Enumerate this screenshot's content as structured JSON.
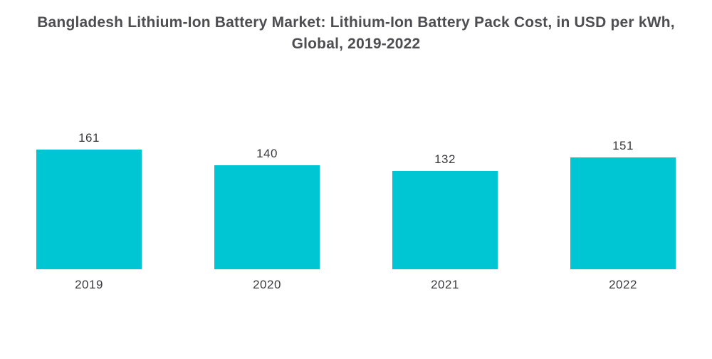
{
  "chart_data": {
    "type": "bar",
    "title": "Bangladesh Lithium-Ion Battery Market: Lithium-Ion Battery Pack Cost, in USD per kWh, Global, 2019-2022",
    "categories": [
      "2019",
      "2020",
      "2021",
      "2022"
    ],
    "values": [
      161,
      140,
      132,
      151
    ],
    "xlabel": "",
    "ylabel": "",
    "ylim": [
      0,
      257
    ],
    "grid": false,
    "legend": false,
    "bar_color": "#00c6d3",
    "value_label_color": "#3a3a3e",
    "title_color": "#4d4d52",
    "background_color": "#ffffff"
  }
}
